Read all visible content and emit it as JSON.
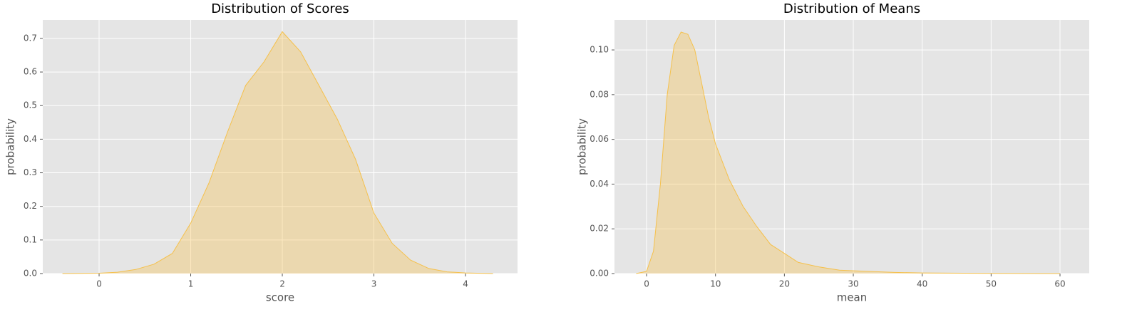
{
  "chart_data": [
    {
      "type": "area",
      "title": "Distribution of Scores",
      "x_label": "score",
      "y_label": "probability",
      "x": [
        -0.4,
        0,
        0.2,
        0.4,
        0.6,
        0.8,
        1.0,
        1.2,
        1.4,
        1.6,
        1.8,
        2.0,
        2.2,
        2.4,
        2.6,
        2.8,
        3.0,
        3.2,
        3.4,
        3.6,
        3.8,
        4.0,
        4.3
      ],
      "values": [
        0,
        0.001,
        0.004,
        0.012,
        0.028,
        0.06,
        0.15,
        0.27,
        0.42,
        0.56,
        0.63,
        0.72,
        0.66,
        0.56,
        0.46,
        0.34,
        0.18,
        0.09,
        0.04,
        0.015,
        0.005,
        0.002,
        0
      ],
      "color": "#f5c04a",
      "xlim": [
        -0.615,
        4.568
      ],
      "ylim": [
        0,
        0.755
      ],
      "xticks": [
        0,
        1,
        2,
        3,
        4
      ],
      "yticks": [
        {
          "value": 0,
          "label": "0.0"
        },
        0.1,
        0.2,
        0.3,
        0.4,
        0.5,
        0.6,
        0.7
      ],
      "grid": true
    },
    {
      "type": "area",
      "title": "Distribution of Means",
      "x_label": "mean",
      "y_label": "probability",
      "x": [
        -1.5,
        0,
        1,
        2,
        3,
        4,
        5,
        6,
        7,
        8,
        9,
        10,
        12,
        14,
        16,
        18,
        20,
        22,
        25,
        28,
        32,
        36,
        40,
        50,
        60
      ],
      "values": [
        0,
        0.001,
        0.01,
        0.04,
        0.08,
        0.102,
        0.108,
        0.107,
        0.1,
        0.085,
        0.07,
        0.058,
        0.042,
        0.03,
        0.021,
        0.013,
        0.009,
        0.005,
        0.003,
        0.0015,
        0.001,
        0.0005,
        0.0003,
        0.0001,
        0
      ],
      "color": "#f5c04a",
      "xlim": [
        -4.66,
        64.24
      ],
      "ylim": [
        0,
        0.1134
      ],
      "xticks": [
        0,
        10,
        20,
        30,
        40,
        50,
        60
      ],
      "yticks": [
        {
          "value": 0,
          "label": "0.00"
        },
        0.02,
        0.04,
        0.06,
        0.08,
        {
          "value": 0.1,
          "label": "0.10"
        }
      ],
      "grid": true
    }
  ]
}
